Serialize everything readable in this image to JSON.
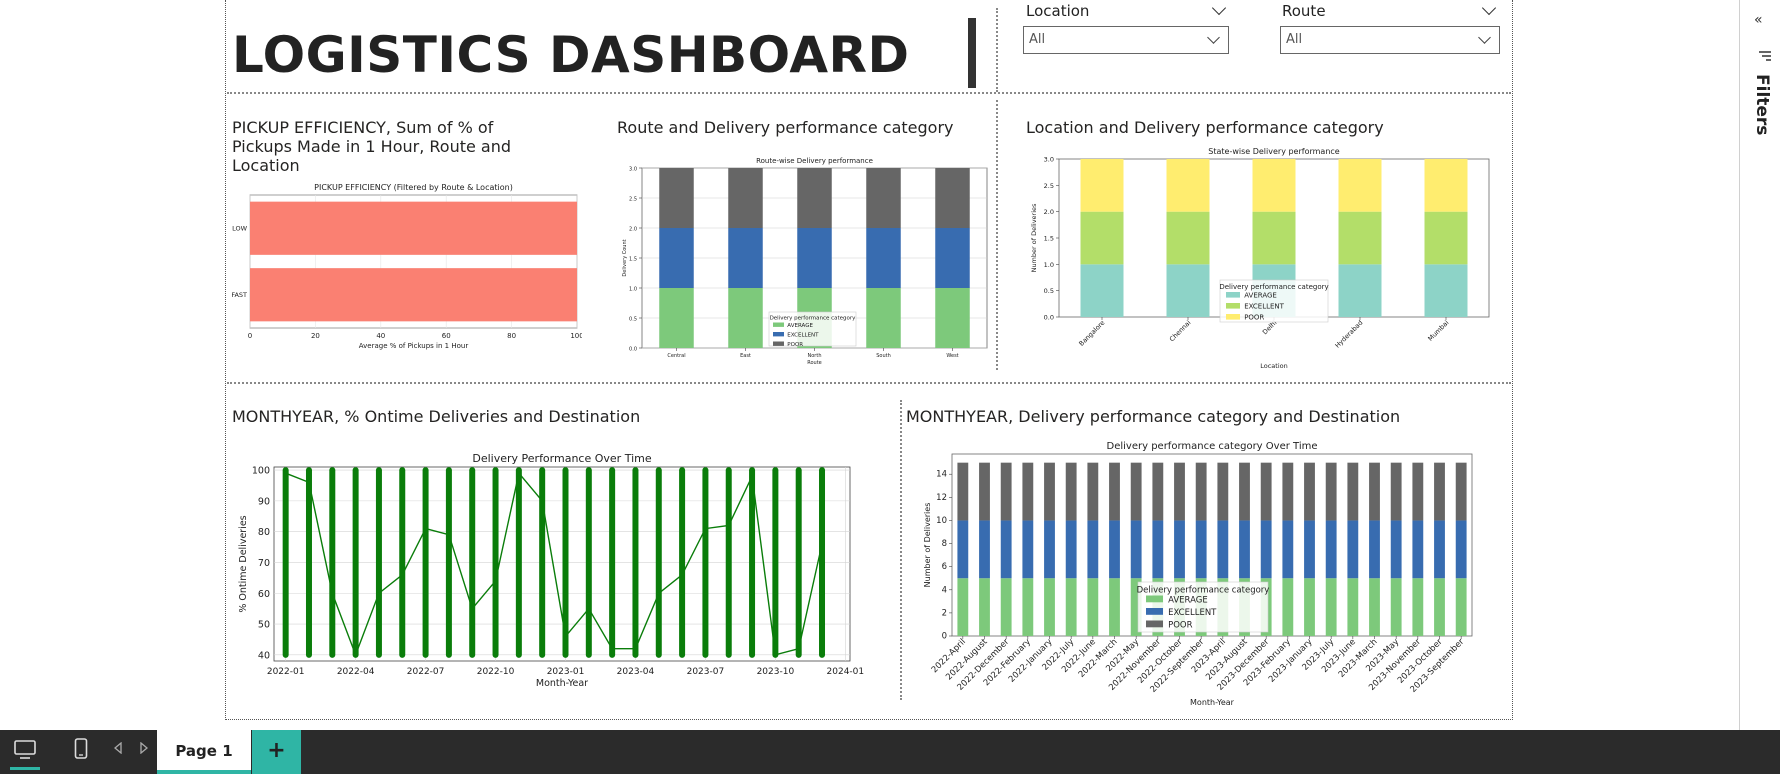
{
  "report": {
    "title": "LOGISTICS DASHBOARD",
    "page_tab": "Page 1",
    "add_page_symbol": "+"
  },
  "slicers": [
    {
      "label": "Location",
      "value": "All"
    },
    {
      "label": "Route",
      "value": "All"
    }
  ],
  "filters_pane": {
    "label": "Filters",
    "collapse_symbol": "«"
  },
  "visuals": {
    "pickup": {
      "title": "PICKUP EFFICIENCY, Sum of % of Pickups Made in 1 Hour, Route and Location"
    },
    "route": {
      "title": "Route and Delivery performance category"
    },
    "location": {
      "title": "Location and Delivery performance category"
    },
    "monthyear_ontime": {
      "title": "MONTHYEAR, % Ontime Deliveries and Destination"
    },
    "monthyear_category": {
      "title": "MONTHYEAR, Delivery performance category and Destination"
    }
  },
  "colors": {
    "average": "#7dc97b",
    "excellent": "#386cb0",
    "poor": "#666666",
    "set3_average": "#8dd3c7",
    "set3_excellent": "#b3de69",
    "set3_poor": "#ffed6f",
    "salmon": "#fa8072",
    "ontime_green": "#0a7d0a",
    "accent": "#2fb5a5"
  },
  "chart_data": [
    {
      "id": "pickup",
      "type": "bar",
      "orientation": "horizontal",
      "title": "PICKUP EFFICIENCY (Filtered by Route & Location)",
      "xlabel": "Average % of Pickups in 1 Hour",
      "ylabel": "",
      "categories": [
        "SLOW",
        "FAST"
      ],
      "values": [
        100,
        100
      ],
      "xlim": [
        0,
        100
      ],
      "xticks": [
        "0",
        "20",
        "40",
        "60",
        "80",
        "100"
      ],
      "grid": true
    },
    {
      "id": "route",
      "type": "bar",
      "stacked": true,
      "title": "Route-wise Delivery performance",
      "xlabel": "Route",
      "ylabel": "Delivery Count",
      "categories": [
        "Central",
        "East",
        "North",
        "South",
        "West"
      ],
      "series": [
        {
          "name": "AVERAGE",
          "values": [
            1,
            1,
            1,
            1,
            1
          ]
        },
        {
          "name": "EXCELLENT",
          "values": [
            1,
            1,
            1,
            1,
            1
          ]
        },
        {
          "name": "POOR",
          "values": [
            1,
            1,
            1,
            1,
            1
          ]
        }
      ],
      "ylim": [
        0,
        3
      ],
      "yticks": [
        "0.0",
        "0.5",
        "1.0",
        "1.5",
        "2.0",
        "2.5",
        "3.0"
      ],
      "legend_title": "Delivery performance category",
      "legend": "bottom-right",
      "grid": true
    },
    {
      "id": "location",
      "type": "bar",
      "stacked": true,
      "title": "State-wise Delivery performance",
      "xlabel": "Location",
      "ylabel": "Number of Deliveries",
      "categories": [
        "Bangalore",
        "Chennai",
        "Delhi",
        "Hyderabad",
        "Mumbai"
      ],
      "series": [
        {
          "name": "AVERAGE",
          "values": [
            1,
            1,
            1,
            1,
            1
          ]
        },
        {
          "name": "EXCELLENT",
          "values": [
            1,
            1,
            1,
            1,
            1
          ]
        },
        {
          "name": "POOR",
          "values": [
            1,
            1,
            1,
            1,
            1
          ]
        }
      ],
      "ylim": [
        0,
        3
      ],
      "yticks": [
        "0.0",
        "0.5",
        "1.0",
        "1.5",
        "2.0",
        "2.5",
        "3.0"
      ],
      "legend_title": "Delivery performance category",
      "legend": "bottom-center",
      "grid": false
    },
    {
      "id": "ontime",
      "type": "line",
      "title": "Delivery Performance Over Time",
      "xlabel": "Month-Year",
      "ylabel": "% Ontime Deliveries",
      "xticks": [
        "2022-01",
        "2022-04",
        "2022-07",
        "2022-10",
        "2023-01",
        "2023-04",
        "2023-07",
        "2023-10",
        "2024-01"
      ],
      "ylim": [
        38,
        101
      ],
      "yticks": [
        "40",
        "50",
        "60",
        "70",
        "80",
        "90",
        "100"
      ],
      "series": [
        {
          "marker_months": [
            "2022-01",
            "2022-02",
            "2022-03",
            "2022-04",
            "2022-05",
            "2022-06",
            "2022-07",
            "2022-08",
            "2022-09",
            "2022-10",
            "2022-11",
            "2022-12",
            "2023-01",
            "2023-02",
            "2023-03",
            "2023-04",
            "2023-05",
            "2023-06",
            "2023-07",
            "2023-08",
            "2023-09",
            "2023-10",
            "2023-11",
            "2023-12"
          ],
          "marker_range": [
            40,
            100
          ],
          "x": [
            "2022-01",
            "2022-02",
            "2022-03",
            "2022-04",
            "2022-05",
            "2022-06",
            "2022-07",
            "2022-08",
            "2022-09",
            "2022-10",
            "2022-11",
            "2022-12",
            "2023-01",
            "2023-02",
            "2023-03",
            "2023-04",
            "2023-05",
            "2023-06",
            "2023-07",
            "2023-08",
            "2023-09",
            "2023-10",
            "2023-11",
            "2023-12"
          ],
          "y": [
            99,
            96,
            60,
            40,
            60,
            66,
            81,
            79,
            55,
            64,
            99,
            90,
            46,
            55,
            42,
            42,
            60,
            66,
            81,
            82,
            98,
            40,
            42,
            76
          ]
        }
      ],
      "grid": true
    },
    {
      "id": "category_over_time",
      "type": "bar",
      "stacked": true,
      "title": "Delivery performance category Over Time",
      "xlabel": "Month-Year",
      "ylabel": "Number of Deliveries",
      "categories": [
        "2022-April",
        "2022-August",
        "2022-December",
        "2022-February",
        "2022-January",
        "2022-July",
        "2022-June",
        "2022-March",
        "2022-May",
        "2022-November",
        "2022-October",
        "2022-September",
        "2023-April",
        "2023-August",
        "2023-December",
        "2023-February",
        "2023-January",
        "2023-July",
        "2023-June",
        "2023-March",
        "2023-May",
        "2023-November",
        "2023-October",
        "2023-September"
      ],
      "series": [
        {
          "name": "AVERAGE",
          "values": [
            5,
            5,
            5,
            5,
            5,
            5,
            5,
            5,
            5,
            5,
            5,
            5,
            5,
            5,
            5,
            5,
            5,
            5,
            5,
            5,
            5,
            5,
            5,
            5
          ]
        },
        {
          "name": "EXCELLENT",
          "values": [
            5,
            5,
            5,
            5,
            5,
            5,
            5,
            5,
            5,
            5,
            5,
            5,
            5,
            5,
            5,
            5,
            5,
            5,
            5,
            5,
            5,
            5,
            5,
            5
          ]
        },
        {
          "name": "POOR",
          "values": [
            5,
            5,
            5,
            5,
            5,
            5,
            5,
            5,
            5,
            5,
            5,
            5,
            5,
            5,
            5,
            5,
            5,
            5,
            5,
            5,
            5,
            5,
            5,
            5
          ]
        }
      ],
      "ylim": [
        0,
        15.75
      ],
      "yticks": [
        "0",
        "2",
        "4",
        "6",
        "8",
        "10",
        "12",
        "14"
      ],
      "legend_title": "Delivery performance category",
      "legend": "bottom-center",
      "grid": false
    }
  ]
}
